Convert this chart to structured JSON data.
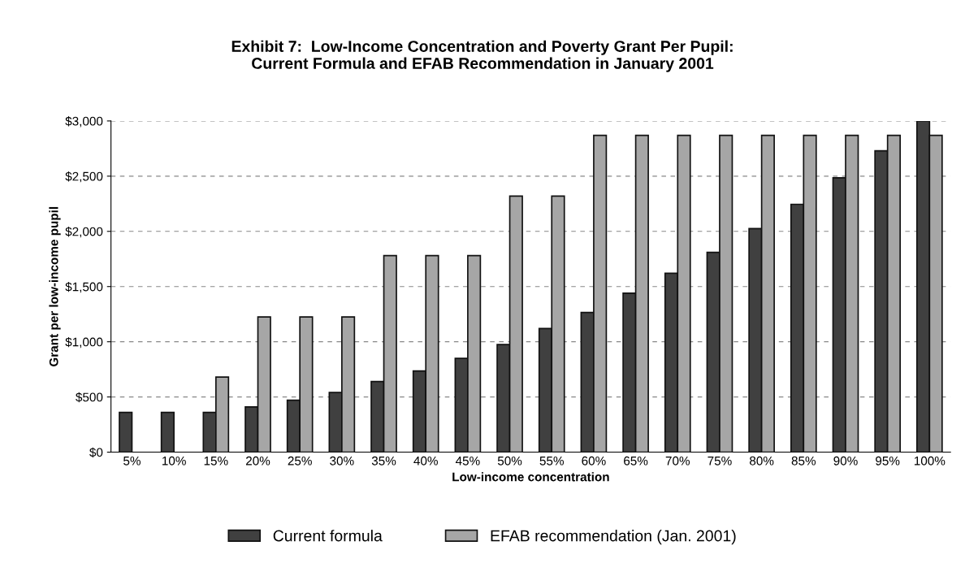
{
  "chart_data": {
    "type": "bar",
    "title": "Exhibit 7:  Low-Income Concentration and Poverty Grant Per Pupil:\nCurrent Formula and EFAB Recommendation in January 2001",
    "xlabel": "Low-income concentration",
    "ylabel": "Grant per low-income pupil",
    "categories": [
      "5%",
      "10%",
      "15%",
      "20%",
      "25%",
      "30%",
      "35%",
      "40%",
      "45%",
      "50%",
      "55%",
      "60%",
      "65%",
      "70%",
      "75%",
      "80%",
      "85%",
      "90%",
      "95%",
      "100%"
    ],
    "series": [
      {
        "name": "Current formula",
        "color": "#404040",
        "values": [
          360,
          360,
          360,
          410,
          470,
          540,
          640,
          735,
          850,
          975,
          1120,
          1265,
          1440,
          1620,
          1810,
          2025,
          2245,
          2485,
          2730,
          3000
        ]
      },
      {
        "name": "EFAB recommendation (Jan. 2001)",
        "color": "#a6a6a6",
        "values": [
          null,
          null,
          680,
          1225,
          1225,
          1225,
          1780,
          1780,
          1780,
          2320,
          2320,
          2870,
          2870,
          2870,
          2870,
          2870,
          2870,
          2870,
          2870,
          2870
        ]
      }
    ],
    "ylim": [
      0,
      3000
    ],
    "yticks": [
      {
        "value": 0,
        "label": "$0"
      },
      {
        "value": 500,
        "label": "$500"
      },
      {
        "value": 1000,
        "label": "$1,000"
      },
      {
        "value": 1500,
        "label": "$1,500"
      },
      {
        "value": 2000,
        "label": "$2,000"
      },
      {
        "value": 2500,
        "label": "$2,500"
      },
      {
        "value": 3000,
        "label": "$3,000"
      }
    ],
    "grid": "y",
    "legend": "bottom"
  }
}
